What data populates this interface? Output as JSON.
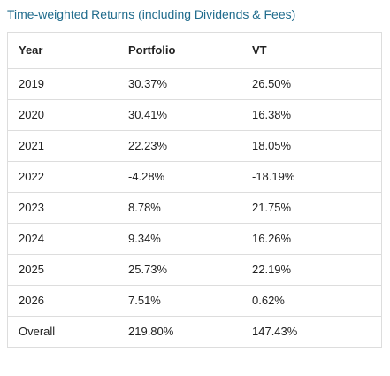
{
  "title": "Time-weighted Returns (including Dividends & Fees)",
  "table": {
    "headers": [
      "Year",
      "Portfolio",
      "VT"
    ],
    "rows": [
      [
        "2019",
        "30.37%",
        "26.50%"
      ],
      [
        "2020",
        "30.41%",
        "16.38%"
      ],
      [
        "2021",
        "22.23%",
        "18.05%"
      ],
      [
        "2022",
        "-4.28%",
        "-18.19%"
      ],
      [
        "2023",
        "8.78%",
        "21.75%"
      ],
      [
        "2024",
        "9.34%",
        "16.26%"
      ],
      [
        "2025",
        "25.73%",
        "22.19%"
      ],
      [
        "2026",
        "7.51%",
        "0.62%"
      ],
      [
        "Overall",
        "219.80%",
        "147.43%"
      ]
    ]
  }
}
